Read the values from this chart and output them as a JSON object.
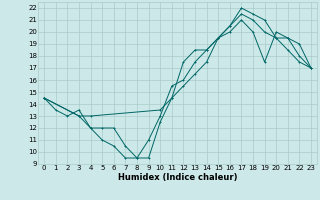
{
  "xlabel": "Humidex (Indice chaleur)",
  "bg_color": "#cce8e8",
  "grid_color": "#aacccc",
  "line_color": "#006666",
  "xlim": [
    -0.5,
    23.5
  ],
  "ylim": [
    9,
    22.5
  ],
  "xticks": [
    0,
    1,
    2,
    3,
    4,
    5,
    6,
    7,
    8,
    9,
    10,
    11,
    12,
    13,
    14,
    15,
    16,
    17,
    18,
    19,
    20,
    21,
    22,
    23
  ],
  "yticks": [
    9,
    10,
    11,
    12,
    13,
    14,
    15,
    16,
    17,
    18,
    19,
    20,
    21,
    22
  ],
  "line1_x": [
    0,
    1,
    2,
    3,
    4,
    5,
    6,
    7,
    8,
    9,
    10,
    11,
    12,
    13,
    14,
    15,
    16,
    17,
    18,
    19,
    20,
    21,
    22,
    23
  ],
  "line1_y": [
    14.5,
    13.5,
    13.0,
    13.5,
    12.0,
    11.0,
    10.5,
    9.5,
    9.5,
    11.0,
    13.0,
    15.5,
    16.0,
    17.5,
    18.5,
    19.5,
    20.5,
    21.5,
    21.0,
    20.0,
    19.5,
    18.5,
    17.5,
    17.0
  ],
  "line2_x": [
    0,
    3,
    4,
    5,
    6,
    7,
    8,
    9,
    10,
    11,
    12,
    13,
    14,
    15,
    16,
    17,
    18,
    19,
    20,
    21,
    22,
    23
  ],
  "line2_y": [
    14.5,
    13.0,
    12.0,
    12.0,
    12.0,
    10.5,
    9.5,
    9.5,
    12.5,
    14.5,
    17.5,
    18.5,
    18.5,
    19.5,
    20.5,
    22.0,
    21.5,
    21.0,
    19.5,
    19.5,
    18.0,
    17.0
  ],
  "line3_x": [
    0,
    3,
    4,
    10,
    11,
    12,
    13,
    14,
    15,
    16,
    17,
    18,
    19,
    20,
    21,
    22,
    23
  ],
  "line3_y": [
    14.5,
    13.0,
    13.0,
    13.5,
    14.5,
    15.5,
    16.5,
    17.5,
    19.5,
    20.0,
    21.0,
    20.0,
    17.5,
    20.0,
    19.5,
    19.0,
    17.0
  ]
}
